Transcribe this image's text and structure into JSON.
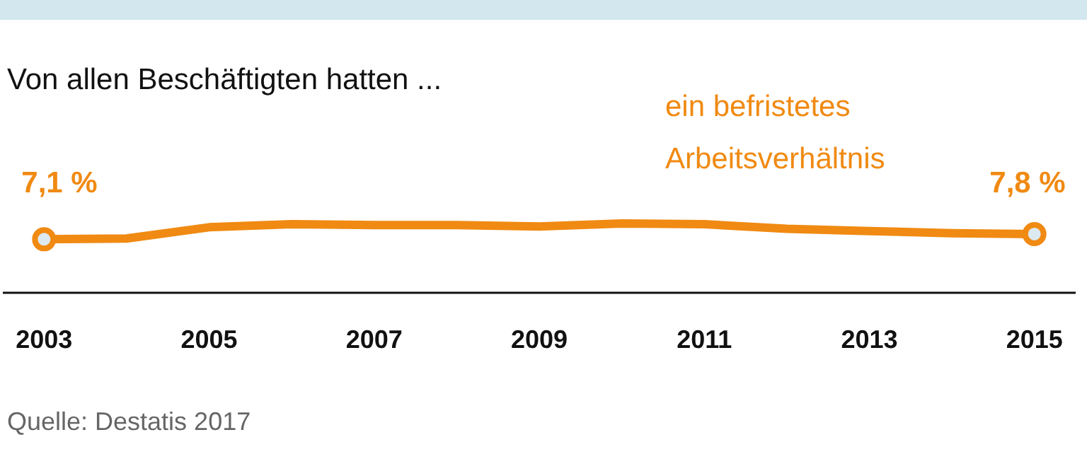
{
  "chart_data": {
    "type": "line",
    "title": "Von allen Beschäftigten hatten ...",
    "x": [
      2003,
      2004,
      2005,
      2006,
      2007,
      2008,
      2009,
      2010,
      2011,
      2012,
      2013,
      2014,
      2015
    ],
    "xlim": [
      2002.5,
      2015.5
    ],
    "xticks": [
      2003,
      2005,
      2007,
      2009,
      2011,
      2013,
      2015
    ],
    "tick_labels": "x",
    "series": [
      {
        "name": "ein befristetes Arbeitsverhältnis",
        "color": "#f08a12",
        "values": [
          7.1,
          7.2,
          8.7,
          9.1,
          9.0,
          9.0,
          8.8,
          9.2,
          9.1,
          8.5,
          8.2,
          7.9,
          7.8
        ],
        "value_labels": [
          "7,1 %",
          null,
          null,
          null,
          null,
          null,
          null,
          null,
          null,
          null,
          null,
          null,
          "7,8 %"
        ]
      }
    ],
    "annotations": [
      "Quelle: Destatis 2017"
    ]
  }
}
